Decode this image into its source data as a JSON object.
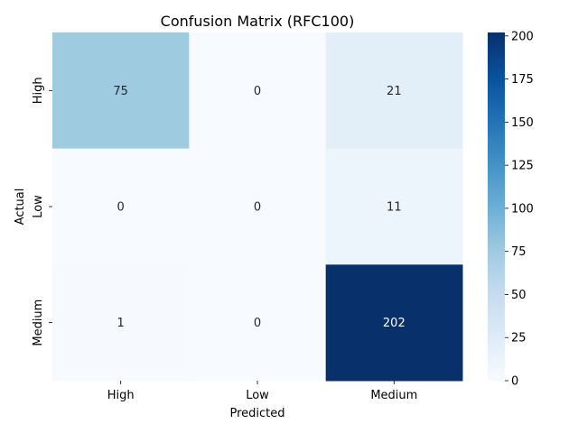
{
  "chart_data": {
    "type": "heatmap",
    "title": "Confusion Matrix (RFC100)",
    "xlabel": "Predicted",
    "ylabel": "Actual",
    "x_categories": [
      "High",
      "Low",
      "Medium"
    ],
    "y_categories": [
      "High",
      "Low",
      "Medium"
    ],
    "values": [
      [
        75,
        0,
        21
      ],
      [
        0,
        0,
        11
      ],
      [
        1,
        0,
        202
      ]
    ],
    "colormap": "Blues",
    "color_range": [
      0,
      202
    ],
    "colorbar_ticks": [
      0,
      25,
      50,
      75,
      100,
      125,
      150,
      175,
      200
    ],
    "colors": {
      "low": "#f7fbff",
      "high": "#08306b",
      "text_dark": "#262626",
      "text_light": "#ffffff"
    }
  }
}
